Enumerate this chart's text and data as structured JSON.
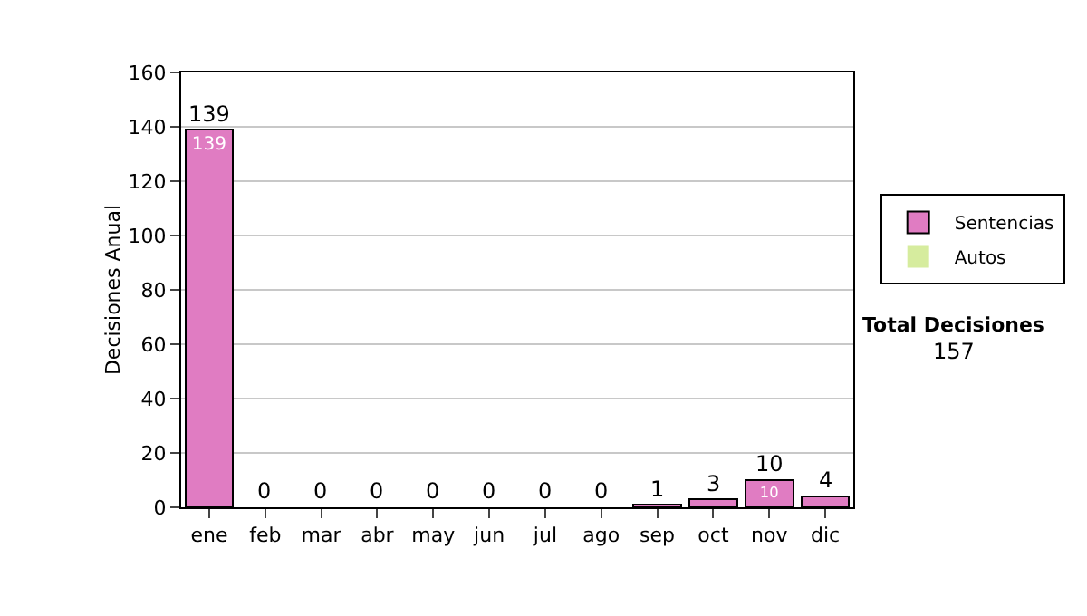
{
  "chart_data": {
    "type": "bar",
    "stacked": true,
    "ylabel": "Decisiones Anual",
    "categories": [
      "ene",
      "feb",
      "mar",
      "abr",
      "may",
      "jun",
      "jul",
      "ago",
      "sep",
      "oct",
      "nov",
      "dic"
    ],
    "series": [
      {
        "name": "Sentencias",
        "color": "#e07cc2",
        "values": [
          139,
          0,
          0,
          0,
          0,
          0,
          0,
          0,
          1,
          3,
          10,
          4
        ],
        "value_labels": [
          "139",
          null,
          null,
          null,
          null,
          null,
          null,
          null,
          null,
          null,
          "10",
          null
        ]
      },
      {
        "name": "Autos",
        "color": "#d6ec9e",
        "values": [
          0,
          0,
          0,
          0,
          0,
          0,
          0,
          0,
          0,
          0,
          0,
          0
        ]
      }
    ],
    "totals": [
      "139",
      "0",
      "0",
      "0",
      "0",
      "0",
      "0",
      "0",
      "1",
      "3",
      "10",
      "4"
    ],
    "ylim": [
      0,
      160
    ],
    "yticks": [
      0,
      20,
      40,
      60,
      80,
      100,
      120,
      140,
      160
    ],
    "grid": "y",
    "legend": "right",
    "annotations": [
      "Total Decisiones",
      "157"
    ]
  }
}
